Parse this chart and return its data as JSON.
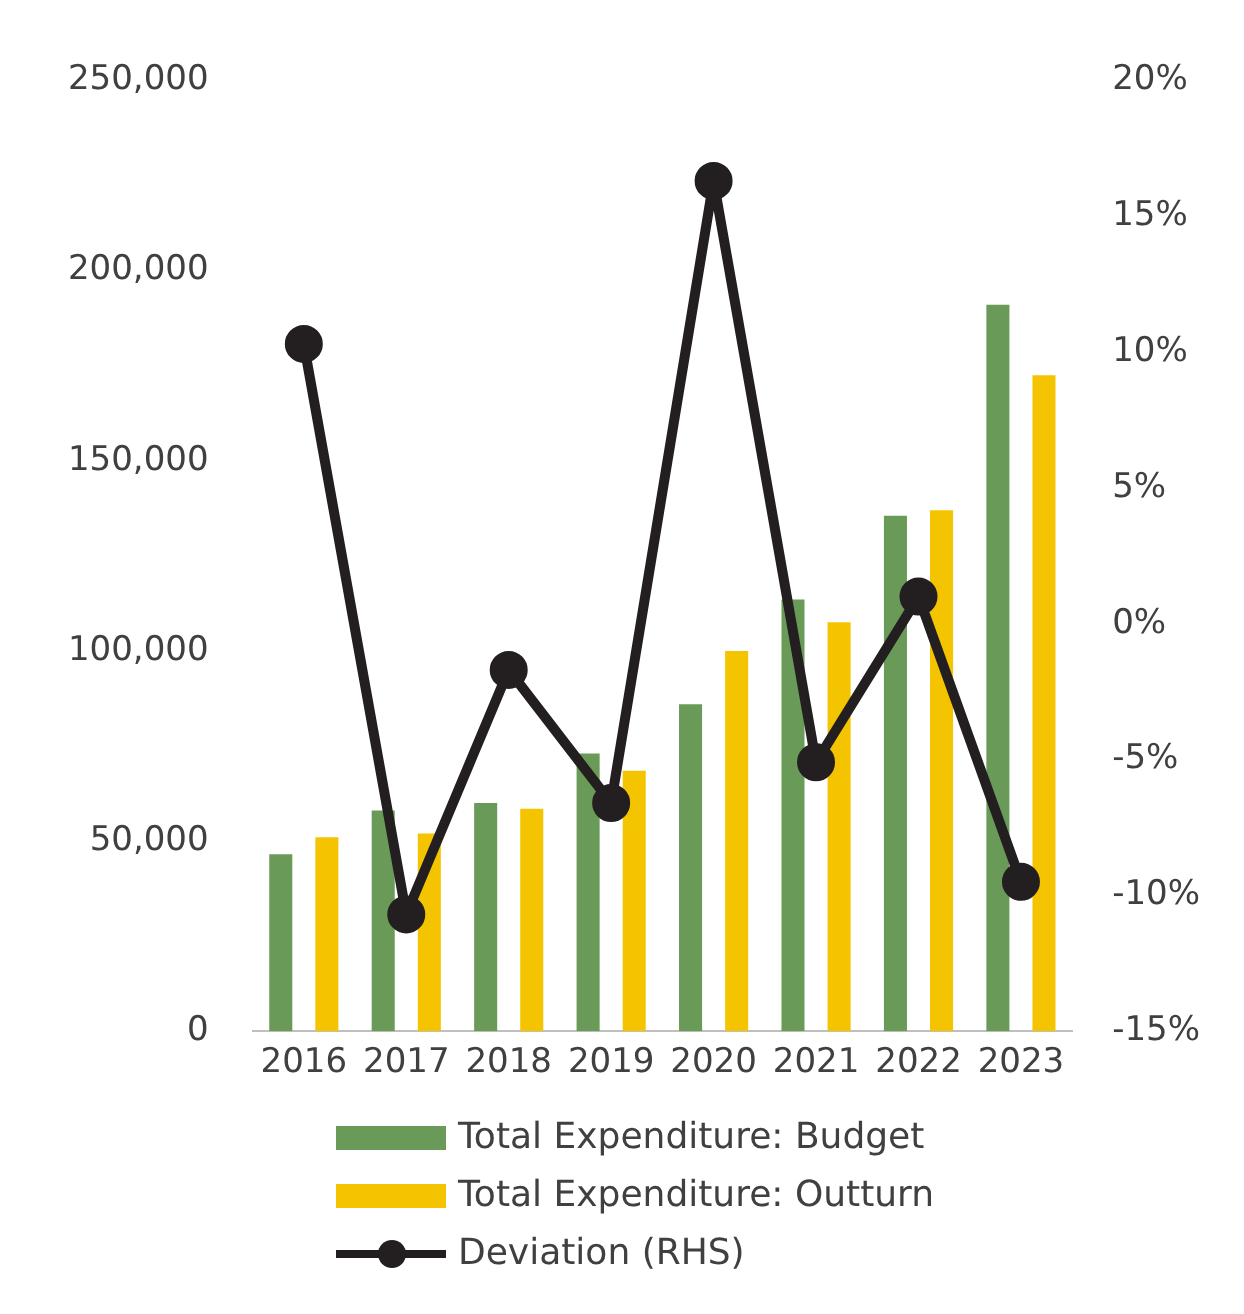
{
  "chart_data": {
    "type": "bar",
    "categories": [
      "2016",
      "2017",
      "2018",
      "2019",
      "2020",
      "2021",
      "2022",
      "2023"
    ],
    "series": [
      {
        "name": "Total Expenditure: Budget",
        "color": "#6a9a58",
        "values": [
          46500,
          58000,
          60000,
          73000,
          86000,
          113500,
          135500,
          191000
        ]
      },
      {
        "name": "Total Expenditure: Outturn",
        "color": "#f5c400",
        "values": [
          51000,
          52000,
          58500,
          68500,
          100000,
          107500,
          137000,
          172500
        ]
      },
      {
        "name": "Deviation (RHS)",
        "type": "line",
        "axis": "y2",
        "color": "#231f20",
        "marker": "circle",
        "values": [
          10.3,
          -10.7,
          -1.7,
          -6.6,
          16.3,
          -5.1,
          1.0,
          -9.5
        ]
      }
    ],
    "ylim": [
      0,
      250000
    ],
    "yticks": [
      {
        "value": 0,
        "label": "0"
      },
      {
        "value": 50000,
        "label": "50,000"
      },
      {
        "value": 100000,
        "label": "100,000"
      },
      {
        "value": 150000,
        "label": "150,000"
      },
      {
        "value": 200000,
        "label": "200,000"
      },
      {
        "value": 250000,
        "label": "250,000"
      }
    ],
    "y2lim": [
      -15,
      20
    ],
    "y2ticks": [
      {
        "value": -15,
        "label": "-15%"
      },
      {
        "value": -10,
        "label": "-10%"
      },
      {
        "value": -5,
        "label": "-5%"
      },
      {
        "value": 0,
        "label": "0%"
      },
      {
        "value": 5,
        "label": "5%"
      },
      {
        "value": 10,
        "label": "10%"
      },
      {
        "value": 15,
        "label": "15%"
      },
      {
        "value": 20,
        "label": "20%"
      }
    ],
    "grid": false,
    "legend": "bottom"
  }
}
